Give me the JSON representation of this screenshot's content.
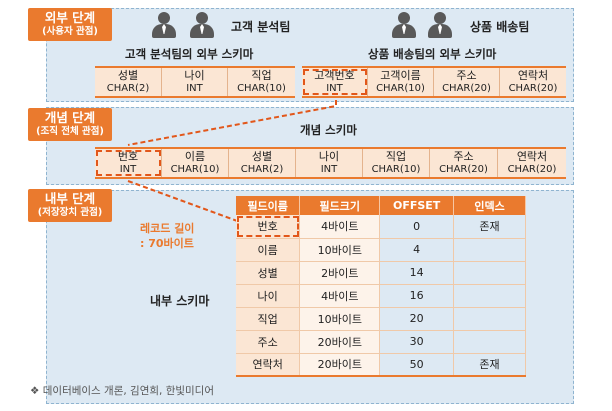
{
  "external": {
    "label_main": "외부 단계",
    "label_sub": "(사용자 관점)",
    "team1": {
      "name": "고객 분석팀",
      "schema_title": "고객 분석팀의 외부 스키마"
    },
    "team2": {
      "name": "상품 배송팀",
      "schema_title": "상품 배송팀의 외부 스키마"
    },
    "schema1": [
      {
        "name": "성별",
        "type": "CHAR(2)"
      },
      {
        "name": "나이",
        "type": "INT"
      },
      {
        "name": "직업",
        "type": "CHAR(10)"
      }
    ],
    "schema2": [
      {
        "name": "고객번호",
        "type": "INT"
      },
      {
        "name": "고객이름",
        "type": "CHAR(10)"
      },
      {
        "name": "주소",
        "type": "CHAR(20)"
      },
      {
        "name": "연락처",
        "type": "CHAR(20)"
      }
    ]
  },
  "conceptual": {
    "label_main": "개념 단계",
    "label_sub": "(조직 전체 관점)",
    "schema_title": "개념 스키마",
    "fields": [
      {
        "name": "번호",
        "type": "INT"
      },
      {
        "name": "이름",
        "type": "CHAR(10)"
      },
      {
        "name": "성별",
        "type": "CHAR(2)"
      },
      {
        "name": "나이",
        "type": "INT"
      },
      {
        "name": "직업",
        "type": "CHAR(10)"
      },
      {
        "name": "주소",
        "type": "CHAR(20)"
      },
      {
        "name": "연락처",
        "type": "CHAR(20)"
      }
    ]
  },
  "internal": {
    "label_main": "내부 단계",
    "label_sub": "(저장장치 관점)",
    "record_note_line1": "레코드 길이",
    "record_note_line2": ": 70바이트",
    "schema_title": "내부 스키마",
    "headers": [
      "필드이름",
      "필드크기",
      "OFFSET",
      "인덱스"
    ],
    "rows": [
      {
        "field": "번호",
        "size": "4바이트",
        "offset": "0",
        "index": "존재"
      },
      {
        "field": "이름",
        "size": "10바이트",
        "offset": "4",
        "index": ""
      },
      {
        "field": "성별",
        "size": "2바이트",
        "offset": "14",
        "index": ""
      },
      {
        "field": "나이",
        "size": "4바이트",
        "offset": "16",
        "index": ""
      },
      {
        "field": "직업",
        "size": "10바이트",
        "offset": "20",
        "index": ""
      },
      {
        "field": "주소",
        "size": "20바이트",
        "offset": "30",
        "index": ""
      },
      {
        "field": "연락처",
        "size": "20바이트",
        "offset": "50",
        "index": "존재"
      }
    ]
  },
  "source": "❖ 데이터베이스 개론, 김연희, 한빛미디어",
  "colors": {
    "accent": "#ea7a2e",
    "panel": "#dde9f3",
    "field_bg": "#fbe6d4",
    "connector": "#e2571a"
  }
}
